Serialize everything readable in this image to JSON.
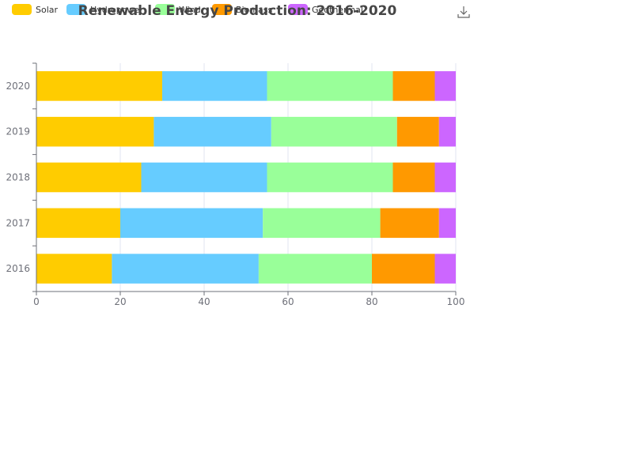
{
  "chart_data": {
    "type": "bar",
    "orientation": "horizontal",
    "stacked": true,
    "title": "Renewable Energy Production: 2016-2020",
    "categories": [
      "2016",
      "2017",
      "2018",
      "2019",
      "2020"
    ],
    "series": [
      {
        "name": "Solar",
        "values": [
          18,
          20,
          25,
          28,
          30
        ],
        "color": "#ffcc00"
      },
      {
        "name": "Hydropower",
        "values": [
          35,
          34,
          30,
          28,
          25
        ],
        "color": "#66ccff"
      },
      {
        "name": "Wind",
        "values": [
          27,
          28,
          30,
          30,
          30
        ],
        "color": "#99ff99"
      },
      {
        "name": "Biomass",
        "values": [
          15,
          14,
          10,
          10,
          10
        ],
        "color": "#ff9900"
      },
      {
        "name": "Geothermal",
        "values": [
          5,
          4,
          5,
          4,
          5
        ],
        "color": "#cc66ff"
      }
    ],
    "xlim": [
      0,
      100
    ],
    "x_ticks": [
      "0",
      "20",
      "40",
      "60",
      "80",
      "100"
    ],
    "xlabel": "",
    "ylabel": "",
    "grid": true,
    "legend_position": "top-left"
  },
  "toolbar": {
    "download_icon": "download-icon"
  }
}
